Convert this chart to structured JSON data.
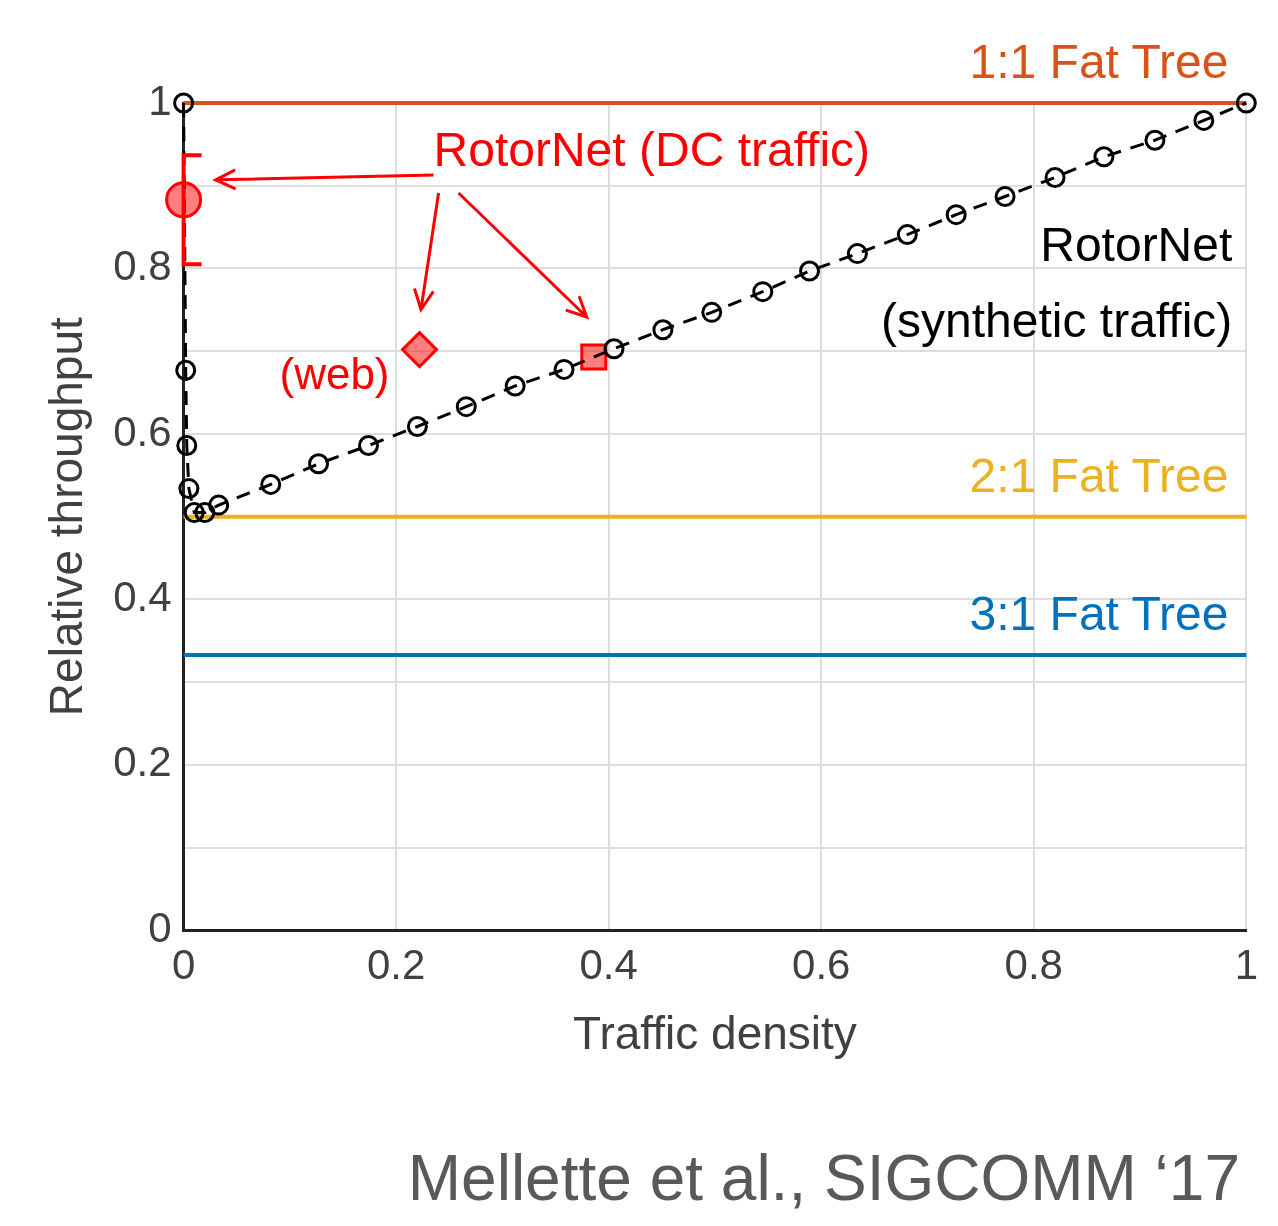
{
  "chart_data": {
    "type": "line",
    "xlabel": "Traffic density",
    "ylabel": "Relative throughput",
    "xlim": [
      0,
      1
    ],
    "xticks": [
      0,
      0.2,
      0.4,
      0.6,
      0.8,
      1
    ],
    "ylim": [
      0,
      1
    ],
    "yticks": [
      0,
      {
        "value": 0.1,
        "label": null
      },
      0.2,
      {
        "value": 0.3,
        "label": null
      },
      0.4,
      {
        "value": 0.5,
        "label": null
      },
      0.6,
      {
        "value": 0.7,
        "label": null
      },
      0.8,
      {
        "value": 0.9,
        "label": null
      },
      1
    ],
    "grid": true,
    "legend": false,
    "series": [
      {
        "name": "RotorNet (synthetic traffic)",
        "color": "#000000",
        "marker": "circle",
        "line_style": "dashed",
        "x": [
          0,
          0.002,
          0.003,
          0.005,
          0.01,
          0.02,
          0.033,
          0.082,
          0.127,
          0.174,
          0.22,
          0.266,
          0.312,
          0.358,
          0.405,
          0.451,
          0.497,
          0.545,
          0.589,
          0.634,
          0.681,
          0.727,
          0.773,
          0.82,
          0.866,
          0.914,
          0.96,
          1
        ],
        "values": [
          1.0,
          0.677,
          0.586,
          0.534,
          0.505,
          0.505,
          0.514,
          0.539,
          0.564,
          0.586,
          0.609,
          0.633,
          0.658,
          0.678,
          0.703,
          0.726,
          0.747,
          0.772,
          0.797,
          0.818,
          0.841,
          0.865,
          0.887,
          0.91,
          0.935,
          0.955,
          0.979,
          1.0
        ]
      },
      {
        "type": "scatter",
        "color": "#ff0000",
        "marker": "circle",
        "x": [
          0
        ],
        "values": [
          0.883
        ],
        "errors": [
          [
            0.805,
            0.937
          ]
        ]
      },
      {
        "type": "scatter",
        "color": "#ff0000",
        "marker": "diamond",
        "x": [
          0.222
        ],
        "values": [
          0.702
        ]
      },
      {
        "type": "scatter",
        "color": "#ff0000",
        "marker": "square",
        "x": [
          0.386
        ],
        "values": [
          0.693
        ]
      }
    ],
    "ref_lines": [
      {
        "axis": "y",
        "value": 1,
        "color": "#d95319"
      },
      {
        "axis": "y",
        "value": 0.5,
        "color": "#edb120"
      },
      {
        "axis": "y",
        "value": 0.333,
        "color": "#0072bd"
      }
    ],
    "annotations": [
      "RotorNet (DC traffic)",
      {
        "text": "1:1 Fat Tree",
        "y": 1
      },
      {
        "text": "2:1 Fat Tree",
        "y": 0.5
      },
      {
        "text": "3:1 Fat Tree",
        "y": 0.333
      },
      {
        "text": "(web)",
        "x": 0.222,
        "y": 0.702
      },
      "Mellette et al., SIGCOMM ‘17"
    ]
  }
}
